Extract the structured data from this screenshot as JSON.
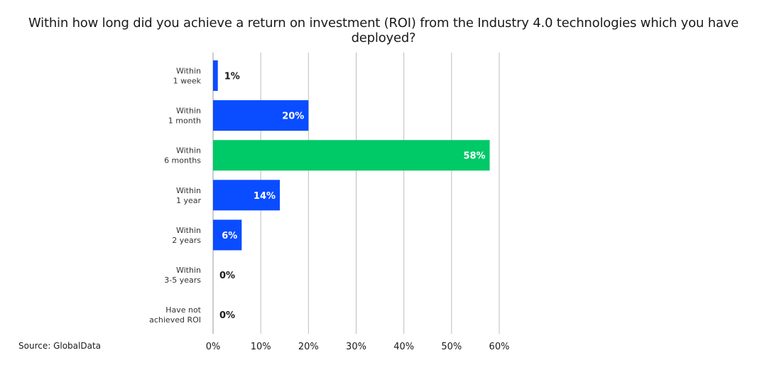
{
  "title": "Within how long did you achieve a return on investment (ROI) from the Industry 4.0 technologies which you have deployed?",
  "source": "Source: GlobalData",
  "colors": {
    "bar": "#0a4cff",
    "highlight": "#00c967",
    "grid": "#bdbdbd",
    "label_inside": "#ffffff",
    "label_outside": "#1a1a1a"
  },
  "chart_data": {
    "type": "bar",
    "orientation": "horizontal",
    "categories": [
      [
        "Within",
        "1 week"
      ],
      [
        "Within",
        "1 month"
      ],
      [
        "Within",
        "6 months"
      ],
      [
        "Within",
        "1 year"
      ],
      [
        "Within",
        "2 years"
      ],
      [
        "Within",
        "3-5 years"
      ],
      [
        "Have not",
        "achieved ROI"
      ]
    ],
    "values": [
      1,
      20,
      58,
      14,
      6,
      0,
      0
    ],
    "data_labels": [
      "1%",
      "20%",
      "58%",
      "14%",
      "6%",
      "0%",
      "0%"
    ],
    "highlight_index": 2,
    "xlim": [
      0,
      60
    ],
    "xticks": [
      "0%",
      "10%",
      "20%",
      "30%",
      "40%",
      "50%",
      "60%"
    ],
    "grid": true,
    "xlabel": "",
    "ylabel": ""
  }
}
